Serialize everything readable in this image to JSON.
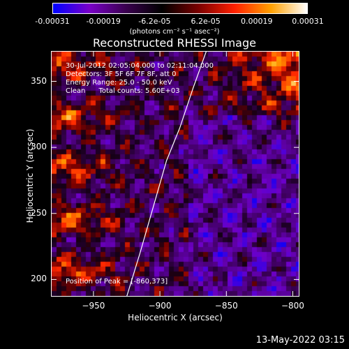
{
  "colorbar": {
    "tick_labels": [
      "-0.00031",
      "-0.00019",
      "-6.2e-05",
      "6.2e-05",
      "0.00019",
      "0.00031"
    ],
    "unit_label": "(photons cm⁻² s⁻¹ asec⁻²)",
    "colors": [
      "#0000ff",
      "#7a00c8",
      "#3b0050",
      "#000000",
      "#7a0000",
      "#ff2000",
      "#ffa000",
      "#ffffff"
    ]
  },
  "info": {
    "time_range": "30-Jul-2012 02:05:04.000 to 02:11:04.000",
    "detectors": "Detectors: 3F 5F 6F 7F 8F, att 0",
    "energy": "Energy Range: 25.0 - 50.0 keV",
    "algorithm": "Clean      Total counts: 5.60E+03",
    "peak": "Position of Peak = [-860,373]"
  },
  "footer": {
    "date": "13-May-2022 03:15"
  },
  "chart_data": {
    "type": "heatmap",
    "title": "Reconstructed RHESSI Image",
    "xlabel": "Heliocentric X (arcsec)",
    "ylabel": "Heliocentric Y (arcsec)",
    "xlim": [
      -982,
      -795
    ],
    "ylim": [
      187,
      373
    ],
    "x_ticks": [
      -950,
      -900,
      -850,
      -800
    ],
    "y_ticks": [
      200,
      250,
      300,
      350
    ],
    "colorbar_range": [
      -0.00031,
      0.00031
    ],
    "peak_position": [
      -860,
      373
    ],
    "limb_curve": {
      "x": [
        -925,
        -915,
        -905,
        -895,
        -885,
        -875,
        -865
      ],
      "y": [
        187,
        220,
        255,
        290,
        315,
        345,
        373
      ]
    }
  }
}
